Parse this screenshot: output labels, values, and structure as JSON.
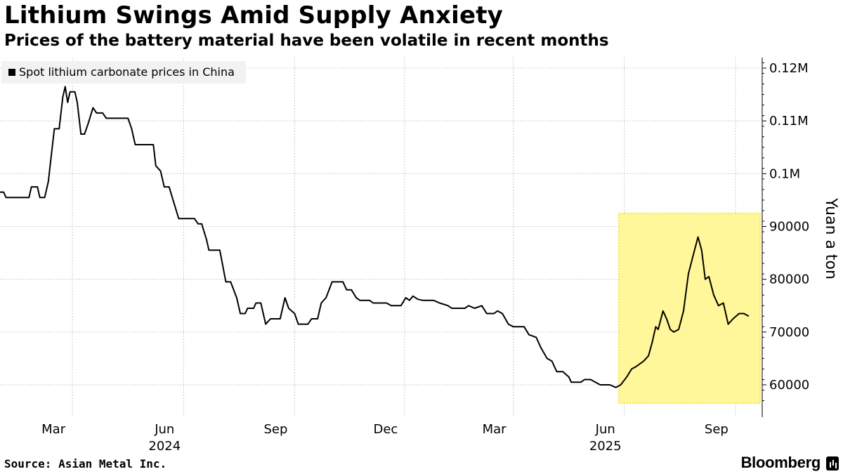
{
  "title": "Lithium Swings Amid Supply Anxiety",
  "subtitle": "Prices of the battery material have been volatile in recent months",
  "legend": {
    "label": "Spot lithium carbonate prices in China",
    "color": "#000000"
  },
  "source": "Source: Asian Metal Inc.",
  "brand": "Bloomberg",
  "colors": {
    "line": "#000000",
    "highlight_fill": "#fff799",
    "highlight_border": "#f5e642",
    "grid": "#cccccc"
  },
  "chart_data": {
    "type": "line",
    "title": "Lithium Swings Amid Supply Anxiety",
    "ylabel": "Yuan a ton",
    "xlabel": "",
    "ylim": [
      55000,
      123000
    ],
    "y_ticks": [
      {
        "value": 60000,
        "label": "60000"
      },
      {
        "value": 70000,
        "label": "70000"
      },
      {
        "value": 80000,
        "label": "80000"
      },
      {
        "value": 90000,
        "label": "90000"
      },
      {
        "value": 100000,
        "label": "0.1M"
      },
      {
        "value": 110000,
        "label": "0.11M"
      },
      {
        "value": 120000,
        "label": "0.12M"
      }
    ],
    "x_ticks": [
      {
        "date": "2024-03-01",
        "label": "Mar"
      },
      {
        "date": "2024-06-01",
        "label": "Jun"
      },
      {
        "date": "2024-09-01",
        "label": "Sep"
      },
      {
        "date": "2024-12-01",
        "label": "Dec"
      },
      {
        "date": "2025-03-01",
        "label": "Mar"
      },
      {
        "date": "2025-06-01",
        "label": "Jun"
      },
      {
        "date": "2025-09-01",
        "label": "Sep"
      }
    ],
    "year_labels": [
      {
        "date": "2024-06-01",
        "label": "2024"
      },
      {
        "date": "2025-06-01",
        "label": "2025"
      }
    ],
    "highlight": {
      "start": "2025-06-01",
      "end": "2025-09-16",
      "ymin": 56500,
      "ymax": 92500
    },
    "series": [
      {
        "name": "Spot lithium carbonate prices in China",
        "points": [
          [
            "2024-01-01",
            96500
          ],
          [
            "2024-01-04",
            96500
          ],
          [
            "2024-01-06",
            95500
          ],
          [
            "2024-01-25",
            95500
          ],
          [
            "2024-01-27",
            97500
          ],
          [
            "2024-02-01",
            97500
          ],
          [
            "2024-02-03",
            95500
          ],
          [
            "2024-02-07",
            95500
          ],
          [
            "2024-02-10",
            98500
          ],
          [
            "2024-02-13",
            104500
          ],
          [
            "2024-02-15",
            108500
          ],
          [
            "2024-02-19",
            108500
          ],
          [
            "2024-02-22",
            114500
          ],
          [
            "2024-02-24",
            116500
          ],
          [
            "2024-02-26",
            113500
          ],
          [
            "2024-02-28",
            115500
          ],
          [
            "2024-03-03",
            115500
          ],
          [
            "2024-03-05",
            113500
          ],
          [
            "2024-03-08",
            107500
          ],
          [
            "2024-03-11",
            107500
          ],
          [
            "2024-03-14",
            109500
          ],
          [
            "2024-03-18",
            112500
          ],
          [
            "2024-03-21",
            111500
          ],
          [
            "2024-03-26",
            111500
          ],
          [
            "2024-03-29",
            110500
          ],
          [
            "2024-04-16",
            110500
          ],
          [
            "2024-04-19",
            108500
          ],
          [
            "2024-04-22",
            105500
          ],
          [
            "2024-05-07",
            105500
          ],
          [
            "2024-05-09",
            101500
          ],
          [
            "2024-05-13",
            100500
          ],
          [
            "2024-05-16",
            97500
          ],
          [
            "2024-05-20",
            97500
          ],
          [
            "2024-05-24",
            94500
          ],
          [
            "2024-05-28",
            91500
          ],
          [
            "2024-06-10",
            91500
          ],
          [
            "2024-06-13",
            90500
          ],
          [
            "2024-06-16",
            90500
          ],
          [
            "2024-06-20",
            87500
          ],
          [
            "2024-06-22",
            85500
          ],
          [
            "2024-07-01",
            85500
          ],
          [
            "2024-07-06",
            79500
          ],
          [
            "2024-07-10",
            79500
          ],
          [
            "2024-07-15",
            76500
          ],
          [
            "2024-07-18",
            73500
          ],
          [
            "2024-07-22",
            73500
          ],
          [
            "2024-07-24",
            74500
          ],
          [
            "2024-07-29",
            74500
          ],
          [
            "2024-07-31",
            75500
          ],
          [
            "2024-08-04",
            75500
          ],
          [
            "2024-08-08",
            71500
          ],
          [
            "2024-08-12",
            72500
          ],
          [
            "2024-08-20",
            72500
          ],
          [
            "2024-08-24",
            76500
          ],
          [
            "2024-08-27",
            74500
          ],
          [
            "2024-09-01",
            73500
          ],
          [
            "2024-09-04",
            71500
          ],
          [
            "2024-09-12",
            71500
          ],
          [
            "2024-09-15",
            72500
          ],
          [
            "2024-09-20",
            72500
          ],
          [
            "2024-09-23",
            75500
          ],
          [
            "2024-09-27",
            76500
          ],
          [
            "2024-10-02",
            79500
          ],
          [
            "2024-10-11",
            79500
          ],
          [
            "2024-10-14",
            78000
          ],
          [
            "2024-10-18",
            78000
          ],
          [
            "2024-10-22",
            76500
          ],
          [
            "2024-10-25",
            76000
          ],
          [
            "2024-11-02",
            76000
          ],
          [
            "2024-11-05",
            75500
          ],
          [
            "2024-11-16",
            75500
          ],
          [
            "2024-11-20",
            75000
          ],
          [
            "2024-11-28",
            75000
          ],
          [
            "2024-12-02",
            76500
          ],
          [
            "2024-12-05",
            76000
          ],
          [
            "2024-12-08",
            76800
          ],
          [
            "2024-12-12",
            76200
          ],
          [
            "2024-12-16",
            76000
          ],
          [
            "2024-12-25",
            76000
          ],
          [
            "2024-12-30",
            75500
          ],
          [
            "2025-01-06",
            75000
          ],
          [
            "2025-01-09",
            74500
          ],
          [
            "2025-01-20",
            74500
          ],
          [
            "2025-01-23",
            75000
          ],
          [
            "2025-01-28",
            74500
          ],
          [
            "2025-02-03",
            75000
          ],
          [
            "2025-02-07",
            73500
          ],
          [
            "2025-02-13",
            73500
          ],
          [
            "2025-02-16",
            74000
          ],
          [
            "2025-02-20",
            73500
          ],
          [
            "2025-02-25",
            71500
          ],
          [
            "2025-03-01",
            71000
          ],
          [
            "2025-03-10",
            71000
          ],
          [
            "2025-03-14",
            69500
          ],
          [
            "2025-03-20",
            69000
          ],
          [
            "2025-03-24",
            67000
          ],
          [
            "2025-03-29",
            65000
          ],
          [
            "2025-04-02",
            64500
          ],
          [
            "2025-04-06",
            62500
          ],
          [
            "2025-04-11",
            62500
          ],
          [
            "2025-04-16",
            61500
          ],
          [
            "2025-04-18",
            60500
          ],
          [
            "2025-04-26",
            60500
          ],
          [
            "2025-04-29",
            61000
          ],
          [
            "2025-05-04",
            61000
          ],
          [
            "2025-05-08",
            60500
          ],
          [
            "2025-05-12",
            60000
          ],
          [
            "2025-05-20",
            60000
          ],
          [
            "2025-05-25",
            59500
          ],
          [
            "2025-05-29",
            60000
          ],
          [
            "2025-06-03",
            61500
          ],
          [
            "2025-06-07",
            63000
          ],
          [
            "2025-06-11",
            63500
          ],
          [
            "2025-06-17",
            64500
          ],
          [
            "2025-06-21",
            65500
          ],
          [
            "2025-06-24",
            68000
          ],
          [
            "2025-06-27",
            71000
          ],
          [
            "2025-06-29",
            70500
          ],
          [
            "2025-07-03",
            74000
          ],
          [
            "2025-07-06",
            72500
          ],
          [
            "2025-07-09",
            70500
          ],
          [
            "2025-07-12",
            70000
          ],
          [
            "2025-07-16",
            70500
          ],
          [
            "2025-07-20",
            74000
          ],
          [
            "2025-07-24",
            81000
          ],
          [
            "2025-07-28",
            84500
          ],
          [
            "2025-08-01",
            88000
          ],
          [
            "2025-08-04",
            85500
          ],
          [
            "2025-08-07",
            80000
          ],
          [
            "2025-08-10",
            80500
          ],
          [
            "2025-08-14",
            77000
          ],
          [
            "2025-08-18",
            75000
          ],
          [
            "2025-08-22",
            75500
          ],
          [
            "2025-08-26",
            71500
          ],
          [
            "2025-08-30",
            72500
          ],
          [
            "2025-09-04",
            73500
          ],
          [
            "2025-09-08",
            73500
          ],
          [
            "2025-09-12",
            73000
          ]
        ]
      }
    ]
  }
}
